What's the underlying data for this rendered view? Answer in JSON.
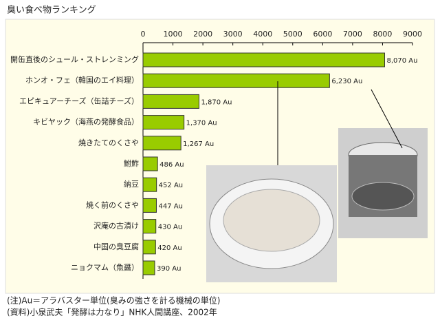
{
  "chart_data": {
    "type": "hbar",
    "title": "臭い食べ物ランキング",
    "categories": [
      "開缶直後のシュール・ストレンミング",
      "ホンオ・フェ（韓国のエイ料理）",
      "エピキュアーチーズ（缶詰チーズ）",
      "キビヤック（海燕の発酵食品）",
      "焼きたてのくさや",
      "鮒鮓",
      "納豆",
      "焼く前のくさや",
      "沢庵の古漬け",
      "中国の臭豆腐",
      "ニョクマム（魚醤）"
    ],
    "values": [
      8070,
      6230,
      1870,
      1370,
      1267,
      486,
      452,
      447,
      430,
      420,
      390
    ],
    "value_labels": [
      "8,070 Au",
      "6,230 Au",
      "1,870 Au",
      "1,370 Au",
      "1,267 Au",
      "486 Au",
      "452 Au",
      "447 Au",
      "430 Au",
      "420 Au",
      "390 Au"
    ],
    "color": "#99cc00",
    "xlim": [
      0,
      9000
    ],
    "xticks": [
      0,
      1000,
      2000,
      3000,
      4000,
      5000,
      6000,
      7000,
      8000,
      9000
    ],
    "notes": [
      "(注)Au＝アラバスター単位(臭みの強さを計る機械の単位)",
      "(資料)小泉武夫「発酵は力なり」NHK人間講座、2002年"
    ]
  }
}
